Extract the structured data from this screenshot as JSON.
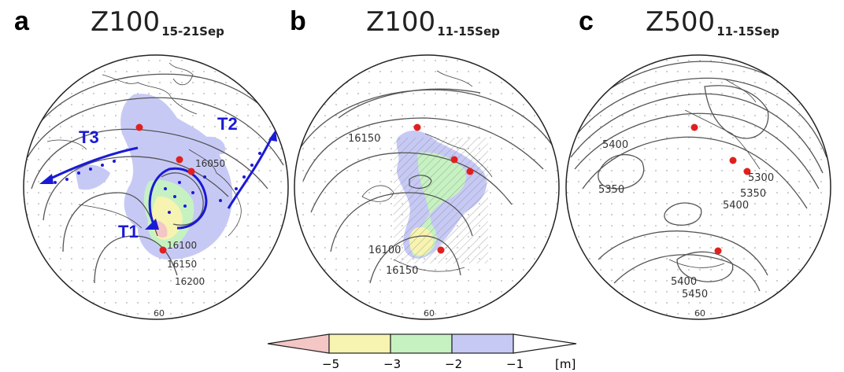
{
  "panels": [
    {
      "letter": "a",
      "title": "Z100",
      "subscript": "15-21Sep",
      "contour_labels": [
        "16050",
        "16100",
        "16150",
        "16200"
      ],
      "lat_label": "60",
      "tracks": [
        "T1",
        "T2",
        "T3"
      ]
    },
    {
      "letter": "b",
      "title": "Z100",
      "subscript": "11-15Sep",
      "contour_labels": [
        "16150",
        "16100",
        "16150"
      ],
      "lat_label": "60"
    },
    {
      "letter": "c",
      "title": "Z500",
      "subscript": "11-15Sep",
      "contour_labels": [
        "5400",
        "5350",
        "5300",
        "5350",
        "5400",
        "5400",
        "5450"
      ],
      "lat_label": "60"
    }
  ],
  "colorbar": {
    "ticks": [
      "−5",
      "−3",
      "−2",
      "−1"
    ],
    "unit": "[m]",
    "colors": [
      "#f5c6c6",
      "#f7f3b0",
      "#c6f2c2",
      "#c7c9f5",
      "#ffffff"
    ]
  },
  "colors": {
    "marker": "#e0201e",
    "track": "#1a1ad6",
    "contour": "#555555"
  }
}
